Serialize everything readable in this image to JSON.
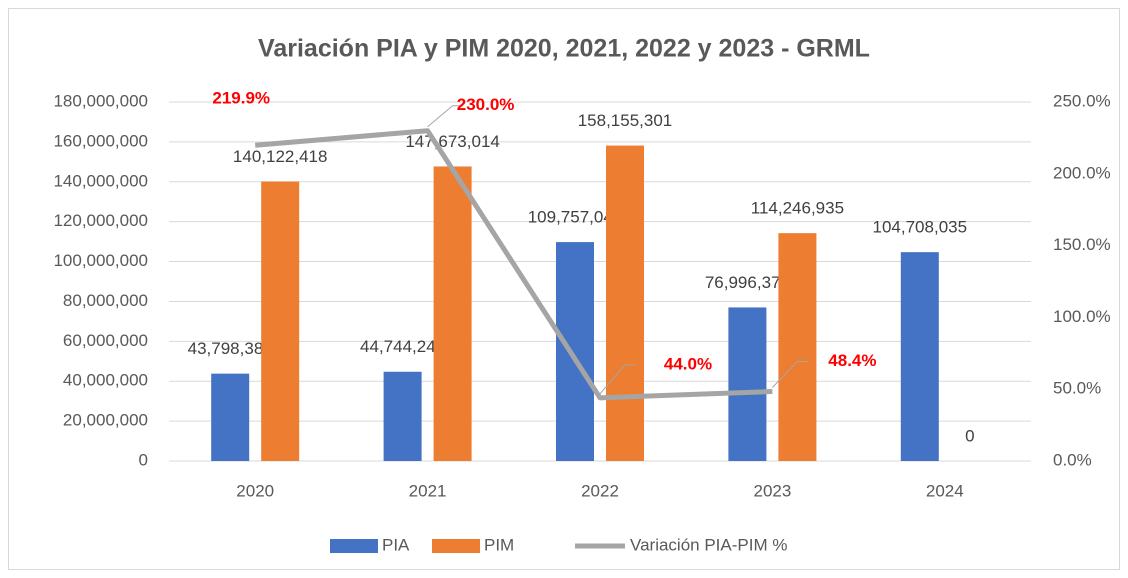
{
  "chart_data": {
    "type": "bar",
    "title": "Variación PIA y PIM 2020, 2021, 2022 y 2023 - GRML",
    "categories": [
      "2020",
      "2021",
      "2022",
      "2023",
      "2024"
    ],
    "series": [
      {
        "name": "PIA",
        "color": "#4472c4",
        "values": [
          43798386,
          44744246,
          109757042,
          76996375,
          104708035
        ],
        "value_labels": [
          "43,798,386",
          "44,744,246",
          "109,757,042",
          "76,996,375",
          "104,708,035"
        ]
      },
      {
        "name": "PIM",
        "color": "#ed7d31",
        "values": [
          140122418,
          147673014,
          158155301,
          114246935,
          0
        ],
        "value_labels": [
          "140,122,418",
          "147,673,014",
          "158,155,301",
          "114,246,935",
          "0"
        ]
      },
      {
        "name": "Variación PIA-PIM %",
        "type": "line",
        "axis": "y2",
        "color": "#a5a5a5",
        "values": [
          219.9,
          230.0,
          44.0,
          48.4,
          null
        ],
        "value_labels": [
          "219.9%",
          "230.0%",
          "44.0%",
          "48.4%",
          null
        ]
      }
    ],
    "ylim": [
      0,
      180000000
    ],
    "yticks": [
      0,
      {
        "value": 20000000,
        "label": "20,000,000"
      },
      {
        "value": 40000000,
        "label": "40,000,000"
      },
      {
        "value": 60000000,
        "label": "60,000,000"
      },
      {
        "value": 80000000,
        "label": "80,000,000"
      },
      {
        "value": 100000000,
        "label": "100,000,000"
      },
      {
        "value": 120000000,
        "label": "120,000,000"
      },
      {
        "value": 140000000,
        "label": "140,000,000"
      },
      {
        "value": 160000000,
        "label": "160,000,000"
      },
      {
        "value": 180000000,
        "label": "180,000,000"
      }
    ],
    "y2lim": [
      0,
      250
    ],
    "y2ticks": [
      {
        "value": 0,
        "label": "0.0%"
      },
      {
        "value": 50,
        "label": "50.0%"
      },
      {
        "value": 100,
        "label": "100.0%"
      },
      {
        "value": 150,
        "label": "150.0%"
      },
      {
        "value": 200,
        "label": "200.0%"
      },
      {
        "value": 250,
        "label": "250.0%"
      }
    ],
    "grid": true,
    "legend": "bottom"
  }
}
